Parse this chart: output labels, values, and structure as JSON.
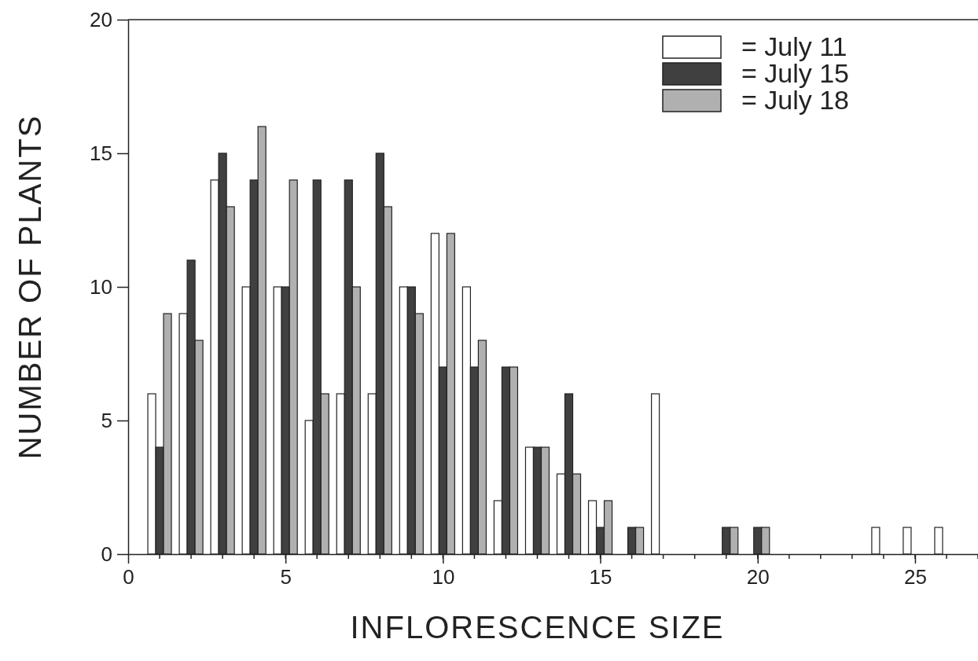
{
  "chart_data": {
    "type": "bar",
    "xlabel": "INFLORESCENCE SIZE",
    "ylabel": "NUMBER OF PLANTS",
    "x": [
      1,
      2,
      3,
      4,
      5,
      6,
      7,
      8,
      9,
      10,
      11,
      12,
      13,
      14,
      15,
      16,
      17,
      18,
      19,
      20,
      21,
      22,
      23,
      24,
      25,
      26
    ],
    "series": [
      {
        "name": "= July 11",
        "color": "#ffffff",
        "values": [
          6,
          9,
          14,
          10,
          10,
          5,
          6,
          6,
          10,
          12,
          10,
          2,
          4,
          3,
          2,
          0,
          6,
          0,
          0,
          0,
          0,
          0,
          0,
          1,
          1,
          1
        ]
      },
      {
        "name": "= July 15",
        "color": "#404040",
        "values": [
          4,
          11,
          15,
          14,
          10,
          14,
          14,
          15,
          10,
          7,
          7,
          7,
          4,
          6,
          1,
          1,
          0,
          0,
          1,
          1,
          0,
          0,
          0,
          0,
          0,
          0
        ]
      },
      {
        "name": "= July 18",
        "color": "#b0b0b0",
        "values": [
          9,
          8,
          13,
          16,
          14,
          6,
          10,
          13,
          9,
          12,
          8,
          7,
          4,
          3,
          2,
          1,
          0,
          0,
          1,
          1,
          0,
          0,
          0,
          0,
          0,
          0
        ]
      }
    ],
    "xlim": [
      0,
      27
    ],
    "xticks": [
      0,
      5,
      10,
      15,
      20,
      25
    ],
    "ylim": [
      0,
      20
    ],
    "yticks": [
      0,
      5,
      10,
      15,
      20
    ],
    "grid": false,
    "legend": "top right"
  }
}
